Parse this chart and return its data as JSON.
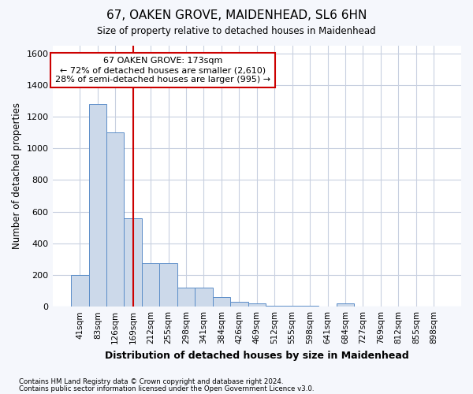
{
  "title1": "67, OAKEN GROVE, MAIDENHEAD, SL6 6HN",
  "title2": "Size of property relative to detached houses in Maidenhead",
  "xlabel": "Distribution of detached houses by size in Maidenhead",
  "ylabel": "Number of detached properties",
  "footer1": "Contains HM Land Registry data © Crown copyright and database right 2024.",
  "footer2": "Contains public sector information licensed under the Open Government Licence v3.0.",
  "categories": [
    "41sqm",
    "83sqm",
    "126sqm",
    "169sqm",
    "212sqm",
    "255sqm",
    "298sqm",
    "341sqm",
    "384sqm",
    "426sqm",
    "469sqm",
    "512sqm",
    "555sqm",
    "598sqm",
    "641sqm",
    "684sqm",
    "727sqm",
    "769sqm",
    "812sqm",
    "855sqm",
    "898sqm"
  ],
  "values": [
    200,
    1280,
    1100,
    560,
    275,
    275,
    120,
    120,
    60,
    30,
    20,
    5,
    5,
    5,
    3,
    20,
    3,
    3,
    3,
    3,
    3
  ],
  "bar_color": "#ccd9ea",
  "bar_edge_color": "#5b8dc8",
  "ylim": [
    0,
    1650
  ],
  "yticks": [
    0,
    200,
    400,
    600,
    800,
    1000,
    1200,
    1400,
    1600
  ],
  "annotation_text": "67 OAKEN GROVE: 173sqm\n← 72% of detached houses are smaller (2,610)\n28% of semi-detached houses are larger (995) →",
  "annotation_box_color": "white",
  "annotation_box_edge_color": "#cc0000",
  "vline_color": "#cc0000",
  "vline_x": 3.5,
  "bg_color": "#f5f7fc",
  "plot_bg_color": "white",
  "grid_color": "#c8d0e0"
}
